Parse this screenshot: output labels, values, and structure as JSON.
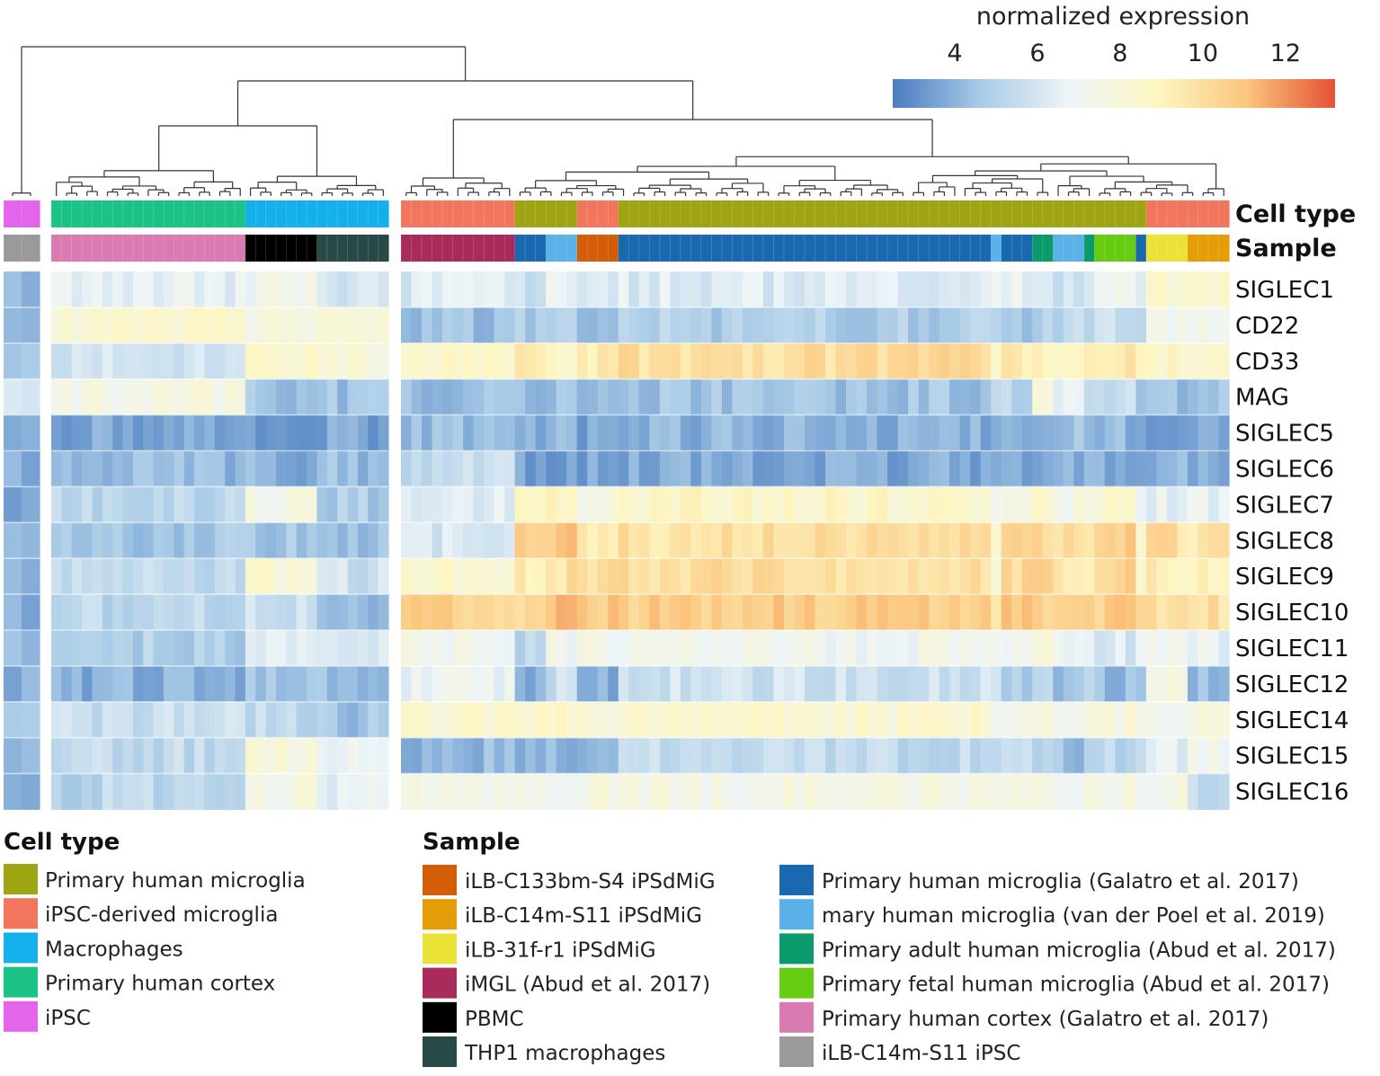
{
  "chart_data": {
    "type": "heatmap",
    "colorbar": {
      "title": "normalized expression",
      "ticks": [
        4,
        6,
        8,
        10,
        12
      ],
      "range": [
        2.5,
        13.2
      ],
      "stops": [
        "#4a7cc0",
        "#a9cbe6",
        "#eef5f7",
        "#fdf6c2",
        "#fbc57d",
        "#e55134"
      ]
    },
    "track_labels": {
      "cell_type": "Cell type",
      "sample": "Sample"
    },
    "genes": [
      "SIGLEC1",
      "CD22",
      "CD33",
      "MAG",
      "SIGLEC5",
      "SIGLEC6",
      "SIGLEC7",
      "SIGLEC8",
      "SIGLEC9",
      "SIGLEC10",
      "SIGLEC11",
      "SIGLEC12",
      "SIGLEC14",
      "SIGLEC15",
      "SIGLEC16"
    ],
    "groups": [
      {
        "cell_type": "iPSC",
        "sample": "iLB-C14m-S11 iPSC",
        "n": 2,
        "means": [
          4.2,
          4.4,
          4.3,
          5.5,
          3.5,
          4.0,
          3.8,
          3.8,
          4.0,
          3.8,
          4.2,
          3.7,
          4.3,
          4.4,
          3.8
        ]
      },
      {
        "cell_type": "Primary human cortex",
        "sample": "Primary human cortex (Galatro et al. 2017)",
        "n": 19,
        "means": [
          6.5,
          8.3,
          6.0,
          7.6,
          3.6,
          4.2,
          5.1,
          4.7,
          5.4,
          5.3,
          4.9,
          3.9,
          5.6,
          5.4,
          5.2
        ]
      },
      {
        "cell_type": "Macrophages",
        "sample": "PBMC",
        "n": 7,
        "means": [
          7.2,
          7.7,
          8.2,
          4.6,
          3.6,
          3.9,
          7.6,
          4.7,
          8.1,
          5.6,
          6.2,
          4.7,
          5.4,
          8.0,
          7.6
        ]
      },
      {
        "cell_type": "Macrophages",
        "sample": "THP1 macrophages",
        "n": 7,
        "means": [
          6.0,
          7.7,
          8.2,
          4.5,
          3.6,
          4.3,
          4.8,
          4.4,
          5.8,
          4.4,
          6.3,
          4.4,
          4.5,
          6.7,
          6.6
        ]
      },
      {
        "cell_type": "iPSC-derived microglia",
        "sample": "iMGL (Abud et al. 2017)",
        "n": 11,
        "means": [
          6.2,
          4.4,
          8.6,
          4.3,
          4.2,
          5.4,
          6.4,
          6.0,
          8.3,
          10.5,
          7.3,
          6.7,
          8.3,
          4.2,
          7.3
        ]
      },
      {
        "cell_type": "Primary human microglia",
        "sample": "Primary human microglia (Galatro et al. 2017)",
        "n": 3,
        "means": [
          5.6,
          4.8,
          9.2,
          4.3,
          3.8,
          3.5,
          8.6,
          10.5,
          9.3,
          10.5,
          5.4,
          4.1,
          8.4,
          4.3,
          7.5
        ]
      },
      {
        "cell_type": "Primary human microglia",
        "sample": "mary human microglia (van der Poel et al. 2019)",
        "n": 3,
        "means": [
          6.6,
          4.8,
          8.9,
          4.6,
          4.0,
          3.6,
          8.7,
          11.0,
          9.9,
          11.4,
          7.2,
          5.8,
          8.7,
          4.3,
          7.5
        ]
      },
      {
        "cell_type": "iPSC-derived microglia",
        "sample": "iLB-C133bm-S4 iPSdMiG",
        "n": 4,
        "means": [
          6.0,
          4.5,
          9.2,
          4.6,
          3.7,
          3.6,
          7.9,
          9.6,
          10.2,
          10.8,
          7.2,
          3.8,
          8.2,
          4.2,
          7.6
        ]
      },
      {
        "cell_type": "Primary human microglia",
        "sample": "Primary human microglia (Galatro et al. 2017)",
        "n": 36,
        "means": [
          6.3,
          4.9,
          10.0,
          4.5,
          4.0,
          3.7,
          8.6,
          9.8,
          10.1,
          10.7,
          7.1,
          5.8,
          8.3,
          5.4,
          7.5
        ]
      },
      {
        "cell_type": "Primary human microglia",
        "sample": "mary human microglia (van der Poel et al. 2019)",
        "n": 1,
        "means": [
          6.5,
          4.6,
          8.2,
          5.1,
          4.0,
          3.8,
          6.9,
          9.0,
          8.4,
          9.3,
          6.8,
          5.8,
          6.8,
          5.1,
          7.4
        ]
      },
      {
        "cell_type": "Primary human microglia",
        "sample": "Primary human microglia (Galatro et al. 2017)",
        "n": 3,
        "means": [
          6.5,
          4.8,
          9.3,
          5.3,
          3.8,
          3.6,
          7.8,
          10.1,
          10.2,
          10.8,
          6.8,
          4.9,
          7.6,
          5.2,
          7.8
        ]
      },
      {
        "cell_type": "Primary human microglia",
        "sample": "Primary adult human microglia (Abud et al. 2017)",
        "n": 2,
        "means": [
          6.3,
          5.2,
          9.1,
          7.9,
          3.7,
          3.7,
          8.5,
          10.1,
          10.1,
          10.3,
          7.7,
          5.0,
          7.6,
          5.0,
          7.7
        ]
      },
      {
        "cell_type": "Primary human microglia",
        "sample": "mary human microglia (van der Poel et al. 2019)",
        "n": 3,
        "means": [
          6.0,
          5.4,
          9.0,
          6.6,
          4.3,
          3.7,
          7.6,
          10.0,
          9.4,
          10.3,
          7.1,
          4.3,
          7.3,
          4.4,
          7.3
        ]
      },
      {
        "cell_type": "Primary human microglia",
        "sample": "Primary adult human microglia (Abud et al. 2017)",
        "n": 1,
        "means": [
          6.6,
          5.2,
          8.9,
          5.8,
          4.2,
          3.8,
          7.9,
          10.1,
          9.8,
          10.1,
          6.9,
          4.7,
          7.4,
          5.3,
          7.5
        ]
      },
      {
        "cell_type": "Primary human microglia",
        "sample": "Primary fetal human microglia (Abud et al. 2017)",
        "n": 4,
        "means": [
          7.4,
          5.6,
          9.3,
          5.7,
          4.1,
          3.9,
          8.4,
          10.9,
          10.4,
          10.7,
          6.2,
          4.3,
          7.7,
          5.2,
          7.7
        ]
      },
      {
        "cell_type": "Primary human microglia",
        "sample": "Primary human microglia (Galatro et al. 2017)",
        "n": 1,
        "means": [
          6.0,
          4.6,
          8.8,
          4.9,
          3.9,
          3.8,
          6.2,
          8.3,
          8.8,
          9.7,
          6.7,
          4.5,
          7.7,
          5.6,
          6.5
        ]
      },
      {
        "cell_type": "iPSC-derived microglia",
        "sample": "iLB-31f-r1 iPSdMiG",
        "n": 4,
        "means": [
          8.3,
          7.2,
          8.7,
          4.4,
          3.7,
          3.9,
          6.6,
          10.0,
          9.1,
          10.0,
          6.8,
          7.7,
          7.5,
          6.6,
          7.5
        ]
      },
      {
        "cell_type": "iPSC-derived microglia",
        "sample": "iLB-C14m-S11 iPSdMiG",
        "n": 4,
        "means": [
          8.2,
          7.0,
          8.8,
          4.3,
          3.7,
          4.1,
          6.6,
          9.7,
          8.9,
          9.8,
          6.6,
          4.3,
          7.6,
          7.3,
          5.4
        ]
      }
    ],
    "legend_cell_type": {
      "title": "Cell type",
      "items": [
        {
          "label": "Primary human microglia",
          "color": "#9ea412"
        },
        {
          "label": "iPSC-derived microglia",
          "color": "#f2765d"
        },
        {
          "label": "Macrophages",
          "color": "#13b0ec"
        },
        {
          "label": "Primary human cortex",
          "color": "#1cc387"
        },
        {
          "label": "iPSC",
          "color": "#e564ec"
        }
      ]
    },
    "legend_sample": {
      "title": "Sample",
      "items": [
        {
          "label": "iLB-C133bm-S4 iPSdMiG",
          "color": "#d45d0a"
        },
        {
          "label": "iLB-C14m-S11 iPSdMiG",
          "color": "#e59d07"
        },
        {
          "label": "iLB-31f-r1 iPSdMiG",
          "color": "#ebe238"
        },
        {
          "label": "iMGL (Abud et al. 2017)",
          "color": "#a92b5b"
        },
        {
          "label": "PBMC",
          "color": "#000000"
        },
        {
          "label": "THP1 macrophages",
          "color": "#284a46"
        },
        {
          "label": "Primary human microglia (Galatro et al. 2017)",
          "color": "#1a69b0"
        },
        {
          "label": "mary human microglia (van der Poel et al. 2019)",
          "color": "#5ab2e8"
        },
        {
          "label": "Primary adult human microglia (Abud et al. 2017)",
          "color": "#0a9a6c"
        },
        {
          "label": "Primary fetal human microglia (Abud et al. 2017)",
          "color": "#66cc12"
        },
        {
          "label": "Primary human cortex (Galatro et al. 2017)",
          "color": "#d97ab0"
        },
        {
          "label": "iLB-C14m-S11 iPSC",
          "color": "#9a9a9a"
        }
      ]
    }
  }
}
